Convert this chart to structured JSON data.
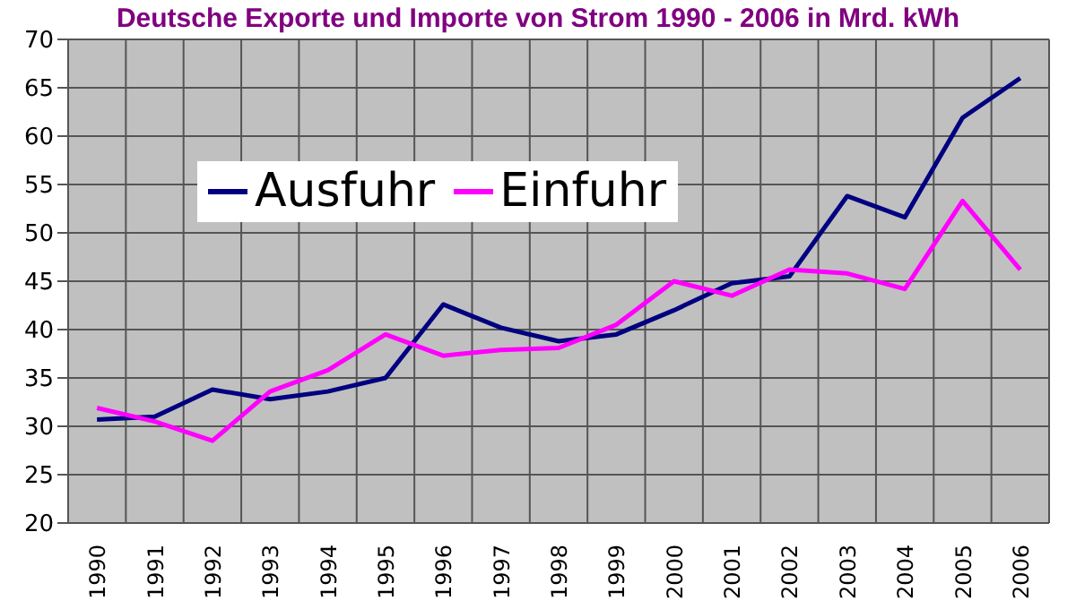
{
  "chart_data": {
    "type": "line",
    "title": "Deutsche Exporte und Importe von Strom 1990 - 2006 in Mrd. kWh",
    "categories": [
      "1990",
      "1991",
      "1992",
      "1993",
      "1994",
      "1995",
      "1996",
      "1997",
      "1998",
      "1999",
      "2000",
      "2001",
      "2002",
      "2003",
      "2004",
      "2005",
      "2006"
    ],
    "series": [
      {
        "name": "Ausfuhr",
        "color": "#000080",
        "values": [
          30.7,
          31,
          33.8,
          32.8,
          33.6,
          35,
          42.6,
          40.2,
          38.8,
          39.5,
          42,
          44.8,
          45.5,
          53.8,
          51.6,
          61.9,
          66
        ]
      },
      {
        "name": "Einfuhr",
        "color": "#ff00ff",
        "values": [
          31.9,
          30.5,
          28.5,
          33.6,
          35.8,
          39.5,
          37.3,
          37.9,
          38.1,
          40.5,
          45,
          43.5,
          46.2,
          45.8,
          44.2,
          53.3,
          46.2
        ]
      }
    ],
    "ylim": [
      20,
      70
    ],
    "yticks": [
      20,
      25,
      30,
      35,
      40,
      45,
      50,
      55,
      60,
      65,
      70
    ],
    "grid": true,
    "legend": "top",
    "marker": "none",
    "line_style": "solid"
  }
}
